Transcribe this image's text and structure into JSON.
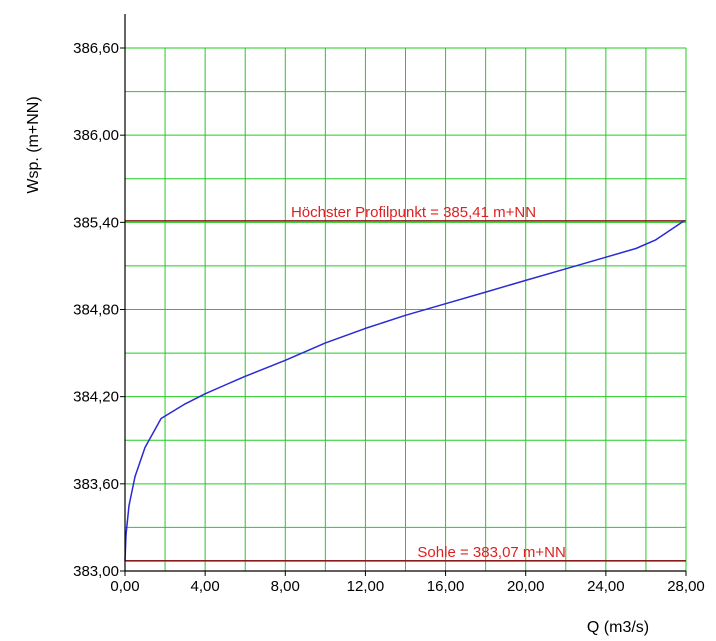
{
  "chart_data": {
    "type": "line",
    "title": "",
    "xlabel": "Q (m3/s)",
    "ylabel": "Wsp. (m+NN)",
    "xlim": [
      0,
      28
    ],
    "ylim": [
      383.0,
      386.6
    ],
    "x_ticks": [
      0,
      4,
      8,
      12,
      16,
      20,
      24,
      28
    ],
    "x_tick_labels": [
      "0,00",
      "4,00",
      "8,00",
      "12,00",
      "16,00",
      "20,00",
      "24,00",
      "28,00"
    ],
    "y_ticks": [
      383.0,
      383.6,
      384.2,
      384.8,
      385.4,
      386.0,
      386.6
    ],
    "y_tick_labels": [
      "383,00",
      "383,60",
      "384,20",
      "384,80",
      "385,40",
      "386,00",
      "386,60"
    ],
    "grid": true,
    "x_grid_step": 2,
    "y_grid_step": 0.3,
    "grid_color": "#22cc22",
    "series": [
      {
        "color": "#2a2ad6",
        "x": [
          0,
          0.05,
          0.2,
          0.5,
          1.0,
          1.8,
          3.0,
          4.0,
          5.0,
          6.0,
          8.0,
          10.0,
          12.0,
          14.0,
          16.0,
          18.0,
          20.0,
          22.0,
          24.0,
          25.5,
          26.5,
          27.9
        ],
        "y": [
          383.07,
          383.25,
          383.45,
          383.65,
          383.85,
          384.05,
          384.15,
          384.22,
          384.28,
          384.34,
          384.45,
          384.57,
          384.67,
          384.76,
          384.84,
          384.92,
          385.0,
          385.08,
          385.16,
          385.22,
          385.28,
          385.41
        ]
      }
    ],
    "reference_lines": [
      {
        "y": 385.41,
        "label": "Höchster Profilpunkt = 385,41 m+NN",
        "line_color": "#8b1a1a",
        "label_color": "#e02020",
        "label_x": 14.4
      },
      {
        "y": 383.07,
        "label": "Sohle = 383,07 m+NN",
        "line_color": "#8b1a1a",
        "label_color": "#e02020",
        "label_x": 18.3
      }
    ]
  }
}
